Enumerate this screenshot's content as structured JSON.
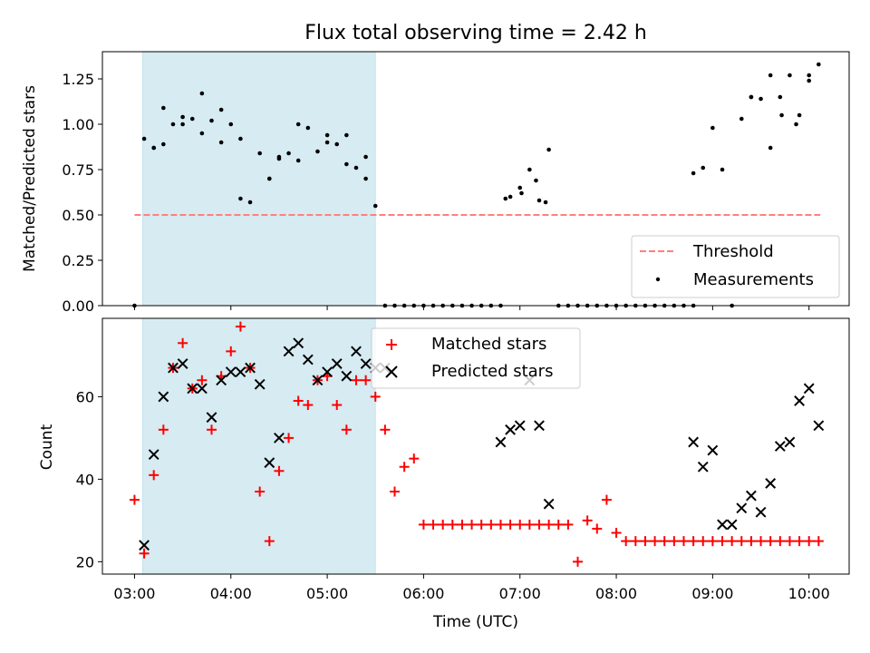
{
  "chart_data": [
    {
      "type": "scatter",
      "title": "Flux total observing time = 2.42 h",
      "xlabel": "",
      "ylabel": "Matched/Predicted stars",
      "ylim": [
        0.0,
        1.4
      ],
      "yticks": [
        "0.00",
        "0.25",
        "0.50",
        "0.75",
        "1.00",
        "1.25"
      ],
      "xlim": [
        "02:40",
        "10:25"
      ],
      "xticks": [
        "03:00",
        "04:00",
        "05:00",
        "06:00",
        "07:00",
        "08:00",
        "09:00",
        "10:00"
      ],
      "shaded_interval": [
        "03:05",
        "05:30"
      ],
      "threshold": {
        "name": "Threshold",
        "y": 0.5,
        "x": [
          "03:00",
          "10:07"
        ],
        "color": "#ff7f7f"
      },
      "legend": {
        "entries": [
          "Threshold",
          "Measurements"
        ],
        "position": "lower right"
      },
      "series": [
        {
          "name": "Measurements",
          "color": "#000000",
          "x": [
            "03:00",
            "03:06",
            "03:12",
            "03:18",
            "03:24",
            "03:30",
            "03:36",
            "03:42",
            "03:48",
            "03:54",
            "04:00",
            "04:06",
            "04:12",
            "04:18",
            "04:24",
            "04:30",
            "04:36",
            "04:42",
            "04:48",
            "04:54",
            "05:00",
            "05:06",
            "05:12",
            "05:18",
            "05:24",
            "05:30",
            "05:36",
            "05:42",
            "05:48",
            "05:54",
            "06:00",
            "06:06",
            "06:12",
            "06:18",
            "06:24",
            "06:30",
            "06:36",
            "06:42",
            "06:48",
            "06:54",
            "07:00",
            "07:06",
            "07:12",
            "07:18",
            "07:24",
            "07:30",
            "07:36",
            "07:42",
            "07:48",
            "07:54",
            "08:00",
            "08:06",
            "08:12",
            "08:18",
            "08:24",
            "08:30",
            "08:36",
            "08:42",
            "08:48",
            "08:54",
            "09:00",
            "09:06",
            "09:12",
            "09:18",
            "09:24",
            "09:30",
            "09:36",
            "09:42",
            "09:48",
            "09:54",
            "10:00",
            "10:06",
            "03:12",
            "03:18",
            "03:30",
            "03:42",
            "03:54",
            "04:06",
            "04:24",
            "04:30",
            "04:42",
            "05:00",
            "05:12",
            "05:24",
            "06:51",
            "07:01",
            "07:10",
            "07:16",
            "08:48",
            "09:24",
            "09:36",
            "09:43",
            "09:52",
            "10:00"
          ],
          "y": [
            0.0,
            0.92,
            0.87,
            0.89,
            1.0,
            1.0,
            1.03,
            0.95,
            1.02,
            1.08,
            1.0,
            0.59,
            0.57,
            0.84,
            0.7,
            0.81,
            0.84,
            1.0,
            0.98,
            0.85,
            0.9,
            0.89,
            0.78,
            0.76,
            0.82,
            0.55,
            0.0,
            0.0,
            0.0,
            0.0,
            0.0,
            0.0,
            0.0,
            0.0,
            0.0,
            0.0,
            0.0,
            0.0,
            0.0,
            0.6,
            0.65,
            0.75,
            0.58,
            0.86,
            0.0,
            0.0,
            0.0,
            0.0,
            0.0,
            0.0,
            0.0,
            0.0,
            0.0,
            0.0,
            0.0,
            0.0,
            0.0,
            0.0,
            0.73,
            0.76,
            0.98,
            0.75,
            0.0,
            1.03,
            1.15,
            1.14,
            0.87,
            1.15,
            1.27,
            1.05,
            1.24,
            1.33,
            0.87,
            1.09,
            1.04,
            1.17,
            0.9,
            0.92,
            0.7,
            0.82,
            0.8,
            0.94,
            0.94,
            0.7,
            0.59,
            0.62,
            0.69,
            0.57,
            0.0,
            1.15,
            1.27,
            1.05,
            1.0,
            1.27
          ]
        }
      ]
    },
    {
      "type": "scatter",
      "title": "",
      "xlabel": "Time (UTC)",
      "ylabel": "Count",
      "ylim": [
        17,
        79
      ],
      "yticks": [
        "20",
        "40",
        "60"
      ],
      "xlim": [
        "02:40",
        "10:25"
      ],
      "xticks": [
        "03:00",
        "04:00",
        "05:00",
        "06:00",
        "07:00",
        "08:00",
        "09:00",
        "10:00"
      ],
      "shaded_interval": [
        "03:05",
        "05:30"
      ],
      "legend": {
        "entries": [
          "Matched stars",
          "Predicted stars"
        ],
        "position": "upper center"
      },
      "series": [
        {
          "name": "Matched stars",
          "marker": "+",
          "color": "#ff0000",
          "x": [
            "03:00",
            "03:06",
            "03:12",
            "03:18",
            "03:24",
            "03:30",
            "03:36",
            "03:42",
            "03:48",
            "03:54",
            "04:00",
            "04:06",
            "04:12",
            "04:18",
            "04:24",
            "04:30",
            "04:36",
            "04:42",
            "04:48",
            "04:54",
            "05:00",
            "05:06",
            "05:12",
            "05:18",
            "05:24",
            "05:30",
            "05:36",
            "05:42",
            "05:48",
            "05:54",
            "06:00",
            "06:06",
            "06:12",
            "06:18",
            "06:24",
            "06:30",
            "06:36",
            "06:42",
            "06:48",
            "06:54",
            "07:00",
            "07:06",
            "07:12",
            "07:18",
            "07:24",
            "07:30",
            "07:36",
            "07:42",
            "07:48",
            "07:54",
            "08:00",
            "08:06",
            "08:12",
            "08:18",
            "08:24",
            "08:30",
            "08:36",
            "08:42",
            "08:48",
            "08:54",
            "09:00",
            "09:06",
            "09:12",
            "09:18",
            "09:24",
            "09:30",
            "09:36",
            "09:42",
            "09:48",
            "09:54",
            "10:00",
            "10:06"
          ],
          "y": [
            35,
            22,
            41,
            52,
            67,
            73,
            62,
            64,
            52,
            65,
            71,
            77,
            67,
            37,
            25,
            42,
            50,
            59,
            58,
            64,
            65,
            58,
            52,
            64,
            64,
            60,
            52,
            37,
            43,
            45,
            29,
            29,
            29,
            29,
            29,
            29,
            29,
            29,
            29,
            29,
            29,
            29,
            29,
            29,
            29,
            29,
            20,
            30,
            28,
            35,
            27,
            25,
            25,
            25,
            25,
            25,
            25,
            25,
            25,
            25,
            25,
            25,
            25,
            25,
            25,
            25,
            25,
            25,
            25,
            25,
            25,
            25
          ]
        },
        {
          "name": "Predicted stars",
          "marker": "x",
          "color": "#000000",
          "x": [
            "03:06",
            "03:12",
            "03:18",
            "03:24",
            "03:30",
            "03:36",
            "03:42",
            "03:48",
            "03:54",
            "04:00",
            "04:06",
            "04:12",
            "04:18",
            "04:24",
            "04:30",
            "04:36",
            "04:42",
            "04:48",
            "04:54",
            "05:00",
            "05:06",
            "05:12",
            "05:18",
            "05:24",
            "05:30",
            "05:36",
            "06:48",
            "06:54",
            "07:00",
            "07:06",
            "07:12",
            "07:18",
            "08:48",
            "08:54",
            "09:00",
            "09:06",
            "09:12",
            "09:18",
            "09:24",
            "09:30",
            "09:36",
            "09:42",
            "09:48",
            "09:54",
            "10:00",
            "10:06"
          ],
          "y": [
            24,
            46,
            60,
            67,
            68,
            62,
            62,
            55,
            64,
            66,
            66,
            67,
            63,
            44,
            50,
            71,
            73,
            69,
            64,
            66,
            68,
            65,
            71,
            68,
            67,
            67,
            49,
            52,
            53,
            64,
            53,
            34,
            49,
            43,
            47,
            29,
            29,
            33,
            36,
            32,
            39,
            48,
            49,
            59,
            62,
            53
          ]
        }
      ]
    }
  ]
}
